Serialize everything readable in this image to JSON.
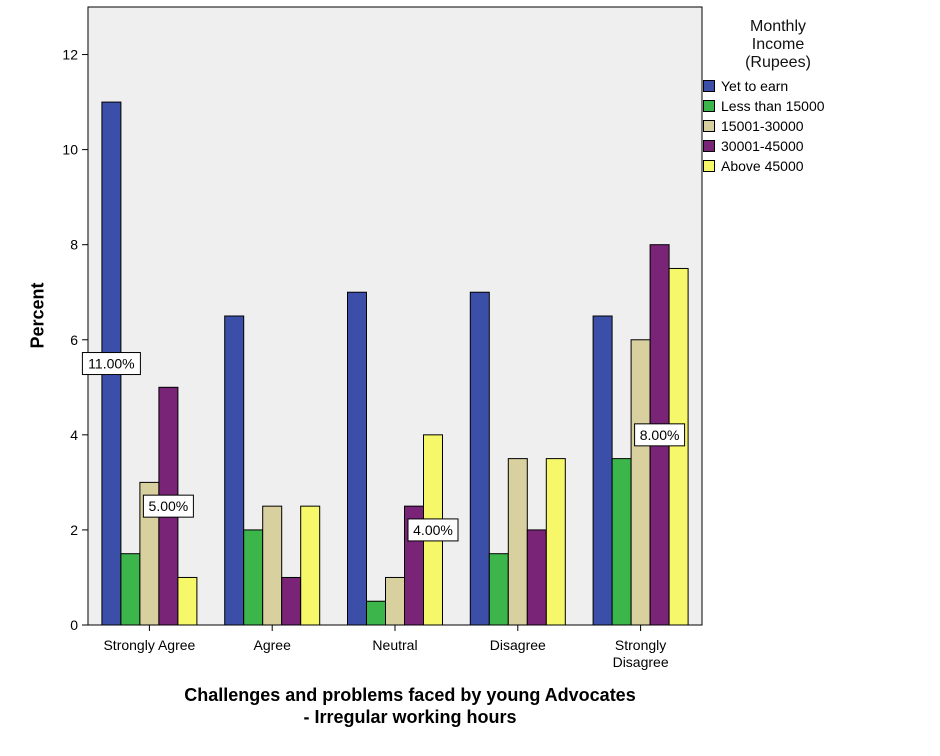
{
  "chart_data": {
    "type": "bar",
    "title": "",
    "xlabel_line1": "Challenges and problems faced by young Advocates",
    "xlabel_line2": "- Irregular working hours",
    "ylabel": "Percent",
    "ylim": [
      0,
      13
    ],
    "yticks": [
      0,
      2,
      4,
      6,
      8,
      10,
      12
    ],
    "grid": false,
    "legend_placement": "right",
    "legend_title": "Monthly\nIncome\n(Rupees)",
    "categories": [
      "Strongly Agree",
      "Agree",
      "Neutral",
      "Disagree",
      "Strongly\nDisagree"
    ],
    "series": [
      {
        "name": "Yet to earn",
        "color": "#3c4fa8",
        "values": [
          11,
          6.5,
          7,
          7,
          6.5
        ]
      },
      {
        "name": "Less than 15000",
        "color": "#3cb54a",
        "values": [
          1.5,
          2,
          0.5,
          1.5,
          3.5
        ]
      },
      {
        "name": "15001-30000",
        "color": "#d9d09f",
        "values": [
          3,
          2.5,
          1,
          3.5,
          6
        ]
      },
      {
        "name": "30001-45000",
        "color": "#7a2478",
        "values": [
          5,
          1,
          2.5,
          2,
          8
        ]
      },
      {
        "name": "Above 45000",
        "color": "#f7f76a",
        "values": [
          1,
          2.5,
          4,
          3.5,
          7.5
        ]
      }
    ],
    "annotations": [
      {
        "text": "11.00%",
        "category": 0,
        "series": 0
      },
      {
        "text": "5.00%",
        "category": 0,
        "series": 3
      },
      {
        "text": "4.00%",
        "category": 2,
        "series": 4
      },
      {
        "text": "8.00%",
        "category": 4,
        "series": 3
      }
    ],
    "colors": {
      "plot_background": "#efefef"
    }
  }
}
